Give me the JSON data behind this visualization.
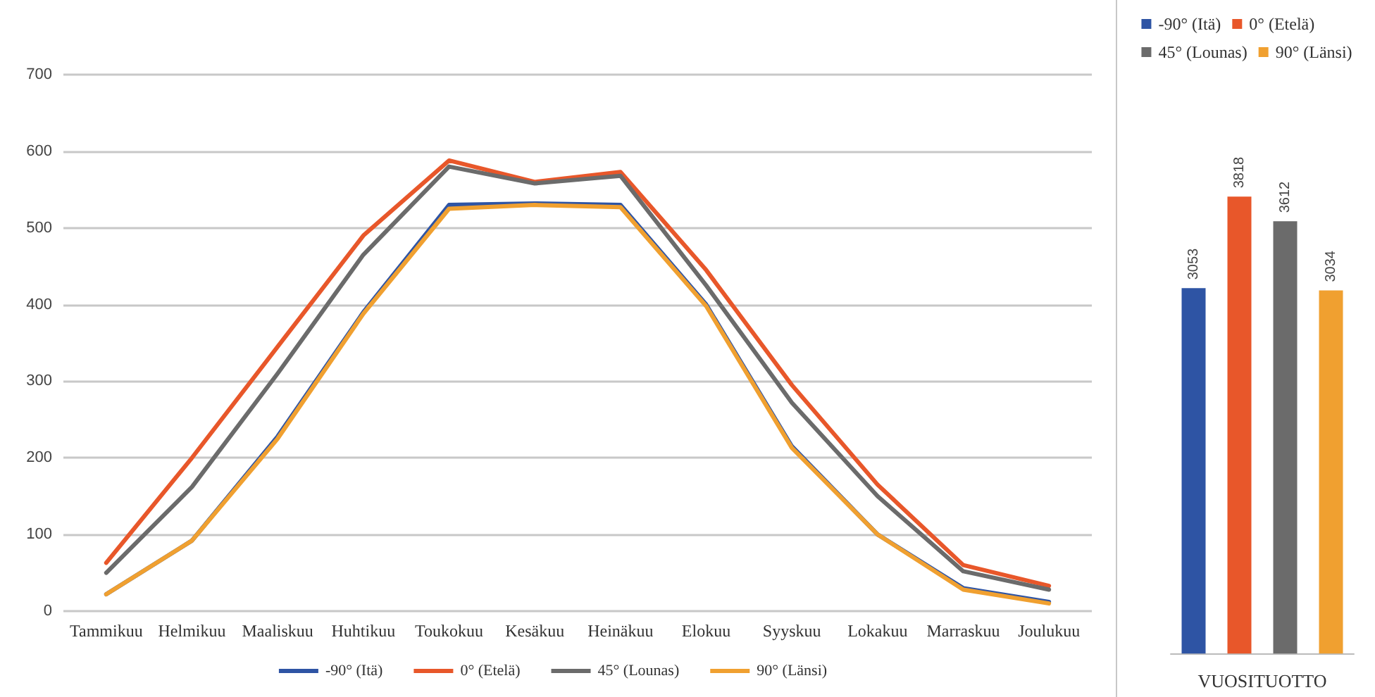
{
  "chart_data": [
    {
      "type": "line",
      "categories": [
        "Tammikuu",
        "Helmikuu",
        "Maaliskuu",
        "Huhtikuu",
        "Toukokuu",
        "Kesäkuu",
        "Heinäkuu",
        "Elokuu",
        "Syyskuu",
        "Lokakuu",
        "Marraskuu",
        "Joulukuu"
      ],
      "series": [
        {
          "name": "-90° (Itä)",
          "color": "#2e54a4",
          "values": [
            22,
            92,
            228,
            390,
            530,
            532,
            530,
            400,
            215,
            100,
            30,
            12
          ]
        },
        {
          "name": "0° (Etelä)",
          "color": "#e8572a",
          "values": [
            63,
            200,
            345,
            490,
            588,
            560,
            573,
            445,
            295,
            165,
            60,
            33
          ]
        },
        {
          "name": "45° (Lounas)",
          "color": "#6b6b6b",
          "values": [
            50,
            162,
            310,
            465,
            580,
            558,
            568,
            425,
            272,
            150,
            52,
            28
          ]
        },
        {
          "name": "90° (Länsi)",
          "color": "#f0a030",
          "values": [
            22,
            92,
            225,
            388,
            525,
            530,
            527,
            398,
            213,
            100,
            28,
            10
          ]
        }
      ],
      "ylim": [
        0,
        700
      ],
      "yticks": [
        0,
        100,
        200,
        300,
        400,
        500,
        600,
        700
      ],
      "grid": "y",
      "legend": "bottom",
      "line_style": "solid",
      "marker": "none"
    },
    {
      "type": "bar",
      "categories": [
        null,
        null,
        null,
        null
      ],
      "xlabel": "VUOSITUOTTO",
      "stacked": true,
      "series": [
        {
          "name": "-90° (Itä)",
          "color": "#2e54a4",
          "values": [
            3053,
            null,
            null,
            null
          ]
        },
        {
          "name": "0° (Etelä)",
          "color": "#e8572a",
          "values": [
            null,
            3818,
            null,
            null
          ]
        },
        {
          "name": "45° (Lounas)",
          "color": "#6b6b6b",
          "values": [
            null,
            null,
            3612,
            null
          ]
        },
        {
          "name": "90° (Länsi)",
          "color": "#f0a030",
          "values": [
            null,
            null,
            null,
            3034
          ]
        }
      ],
      "grid": false,
      "legend": "top",
      "data_labels": true
    }
  ]
}
